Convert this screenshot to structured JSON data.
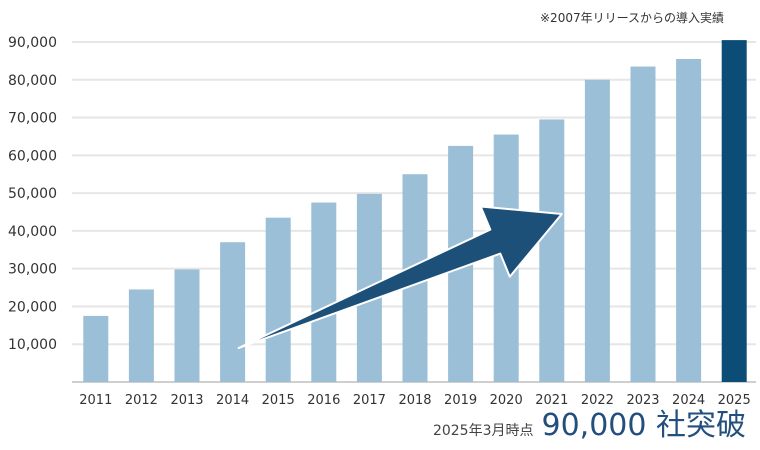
{
  "chart_data": {
    "type": "bar",
    "title": "",
    "xlabel": "",
    "ylabel": "",
    "note": "※2007年リリースからの導入実績",
    "categories": [
      "2011",
      "2012",
      "2013",
      "2014",
      "2015",
      "2016",
      "2017",
      "2018",
      "2019",
      "2020",
      "2021",
      "2022",
      "2023",
      "2024",
      "2025"
    ],
    "values": [
      17500,
      24500,
      29800,
      37000,
      43500,
      47500,
      49800,
      55000,
      62500,
      65500,
      69500,
      80000,
      83500,
      85500,
      90500
    ],
    "ylim": [
      0,
      90000
    ],
    "yticks": [
      10000,
      20000,
      30000,
      40000,
      50000,
      60000,
      70000,
      80000,
      90000
    ],
    "ytick_labels": [
      "10,000",
      "20,000",
      "30,000",
      "40,000",
      "50,000",
      "60,000",
      "70,000",
      "80,000",
      "90,000"
    ],
    "grid": true,
    "colors": {
      "bar": "#9bbfd6",
      "highlight": "#0c4d78",
      "arrow": "#1d5078",
      "grid": "#e6e6e6"
    },
    "highlight_category": "2025",
    "trend_arrow": true
  },
  "footer": {
    "date": "2025年3月時点",
    "headline": "90,000 社突破"
  }
}
